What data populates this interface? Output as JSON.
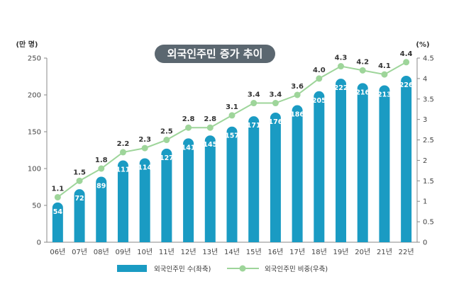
{
  "chart_data": {
    "type": "bar",
    "title": "외국인주민 증가 추이",
    "categories": [
      "06년",
      "07년",
      "08년",
      "09년",
      "10년",
      "11년",
      "12년",
      "13년",
      "14년",
      "15년",
      "16년",
      "17년",
      "18년",
      "19년",
      "20년",
      "21년",
      "22년"
    ],
    "series": [
      {
        "name": "외국인주민 수(좌축)",
        "type": "bar",
        "axis": "left",
        "values": [
          54,
          72,
          89,
          111,
          114,
          127,
          141,
          145,
          157,
          171,
          176,
          186,
          205,
          222,
          216,
          213,
          226
        ],
        "color": "#1a9bc3"
      },
      {
        "name": "외국인주민 비중(우축)",
        "type": "line",
        "axis": "right",
        "values": [
          1.1,
          1.5,
          1.8,
          2.2,
          2.3,
          2.5,
          2.8,
          2.8,
          3.1,
          3.4,
          3.4,
          3.6,
          4.0,
          4.3,
          4.2,
          4.1,
          4.4
        ],
        "color": "#9ed59a"
      }
    ],
    "yleft": {
      "label": "(만 명)",
      "min": 0,
      "max": 250,
      "ticks": [
        0,
        50,
        100,
        150,
        200,
        250
      ]
    },
    "yright": {
      "label": "(%)",
      "min": 0,
      "max": 4.5,
      "ticks": [
        "0",
        "0.5",
        "1",
        "1.5",
        "2",
        "2.5",
        "3",
        "3.5",
        "4",
        "4.5"
      ]
    },
    "grid": false,
    "legend_position": "bottom-center"
  },
  "colors": {
    "title_bg": "#5b6770",
    "axis": "#888888"
  }
}
